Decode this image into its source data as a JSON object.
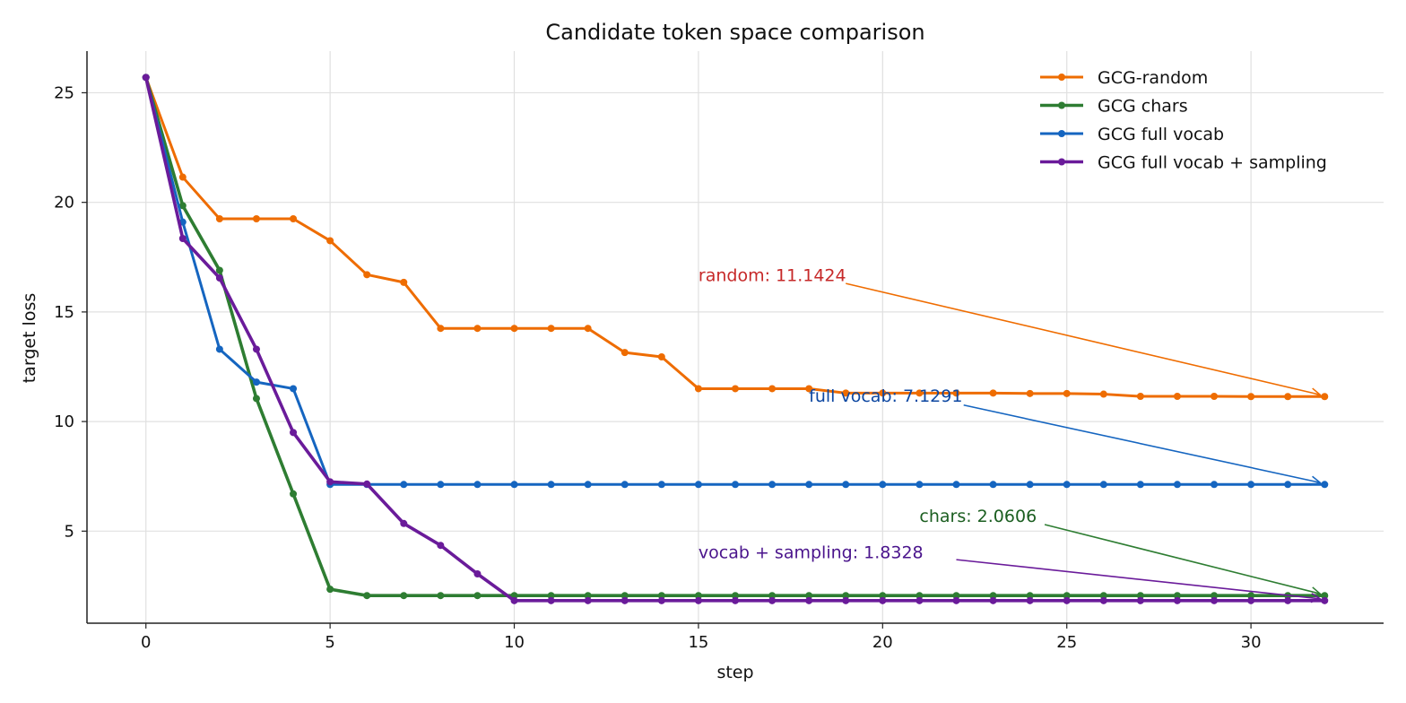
{
  "chart_data": {
    "type": "line",
    "title": "Candidate token space comparison",
    "xlabel": "step",
    "ylabel": "target loss",
    "xlim": [
      -1.6,
      33.6
    ],
    "ylim": [
      0.8,
      26.9
    ],
    "xticks": [
      0,
      5,
      10,
      15,
      20,
      25,
      30
    ],
    "yticks": [
      5,
      10,
      15,
      20,
      25
    ],
    "grid": true,
    "legend_position": "top-right",
    "x": [
      0,
      1,
      2,
      3,
      4,
      5,
      6,
      7,
      8,
      9,
      10,
      11,
      12,
      13,
      14,
      15,
      16,
      17,
      18,
      19,
      20,
      21,
      22,
      23,
      24,
      25,
      26,
      27,
      28,
      29,
      30,
      31,
      32
    ],
    "series": [
      {
        "name": "GCG-random",
        "color": "#ee6c00",
        "values": [
          25.7,
          21.15,
          19.25,
          19.25,
          19.25,
          18.25,
          16.7,
          16.35,
          14.25,
          14.25,
          14.25,
          14.25,
          14.25,
          13.15,
          12.95,
          11.5,
          11.5,
          11.5,
          11.5,
          11.3,
          11.3,
          11.3,
          11.3,
          11.3,
          11.28,
          11.28,
          11.25,
          11.15,
          11.15,
          11.15,
          11.14,
          11.14,
          11.14
        ]
      },
      {
        "name": "GCG chars",
        "color": "#2e7d32",
        "values": [
          25.7,
          19.85,
          16.9,
          11.05,
          6.7,
          2.35,
          2.06,
          2.06,
          2.06,
          2.06,
          2.06,
          2.06,
          2.06,
          2.06,
          2.06,
          2.06,
          2.06,
          2.06,
          2.06,
          2.06,
          2.06,
          2.06,
          2.06,
          2.06,
          2.06,
          2.06,
          2.06,
          2.06,
          2.06,
          2.06,
          2.06,
          2.06,
          2.06
        ]
      },
      {
        "name": "GCG full vocab",
        "color": "#1565c0",
        "values": [
          25.7,
          19.1,
          13.3,
          11.8,
          11.5,
          7.13,
          7.13,
          7.13,
          7.13,
          7.13,
          7.13,
          7.13,
          7.13,
          7.13,
          7.13,
          7.13,
          7.13,
          7.13,
          7.13,
          7.13,
          7.13,
          7.13,
          7.13,
          7.13,
          7.13,
          7.13,
          7.13,
          7.13,
          7.13,
          7.13,
          7.13,
          7.13,
          7.13
        ]
      },
      {
        "name": "GCG full vocab + sampling",
        "color": "#6a1b9a",
        "values": [
          25.7,
          18.35,
          16.55,
          13.3,
          9.5,
          7.25,
          7.15,
          5.35,
          4.35,
          3.05,
          1.83,
          1.83,
          1.83,
          1.83,
          1.83,
          1.83,
          1.83,
          1.83,
          1.83,
          1.83,
          1.83,
          1.83,
          1.83,
          1.83,
          1.83,
          1.83,
          1.83,
          1.83,
          1.83,
          1.83,
          1.83,
          1.83,
          1.83
        ]
      }
    ],
    "annotations": [
      {
        "text": "random: 11.1424",
        "color": "#c62828",
        "arrow_color": "#ef6c00",
        "text_x": 15,
        "text_y": 16.7,
        "arrow_from": [
          19,
          16.3
        ],
        "arrow_to": [
          32,
          11.14
        ]
      },
      {
        "text": "full vocab: 7.1291",
        "color": "#0d47a1",
        "arrow_color": "#1565c0",
        "text_x": 18,
        "text_y": 11.2,
        "arrow_from": [
          22.2,
          10.75
        ],
        "arrow_to": [
          32,
          7.13
        ]
      },
      {
        "text": "chars: 2.0606",
        "color": "#1b5e20",
        "arrow_color": "#2e7d32",
        "text_x": 21,
        "text_y": 5.7,
        "arrow_from": [
          24.4,
          5.3
        ],
        "arrow_to": [
          32,
          2.06
        ]
      },
      {
        "text": "vocab + sampling: 1.8328",
        "color": "#4a148c",
        "arrow_color": "#6a1b9a",
        "text_x": 15,
        "text_y": 4.05,
        "arrow_from": [
          22,
          3.7
        ],
        "arrow_to": [
          32,
          1.83
        ]
      }
    ]
  }
}
